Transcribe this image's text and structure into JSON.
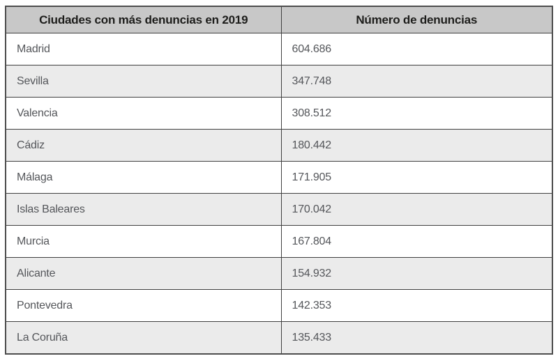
{
  "chart_data": {
    "type": "table",
    "columns": [
      "Ciudades con más denuncias en 2019",
      "Número de denuncias"
    ],
    "rows": [
      [
        "Madrid",
        "604.686"
      ],
      [
        "Sevilla",
        "347.748"
      ],
      [
        "Valencia",
        "308.512"
      ],
      [
        "Cádiz",
        "180.442"
      ],
      [
        "Málaga",
        "171.905"
      ],
      [
        "Islas Baleares",
        "170.042"
      ],
      [
        "Murcia",
        "167.804"
      ],
      [
        "Alicante",
        "154.932"
      ],
      [
        "Pontevedra",
        "142.353"
      ],
      [
        "La Coruña",
        "135.433"
      ]
    ],
    "layout": {
      "legend": "off",
      "grid": "table-borders",
      "striped_rows": true
    }
  },
  "colors": {
    "header_bg": "#c8c8c8",
    "row_bg": "#ffffff",
    "row_alt_bg": "#ebebeb",
    "border": "#3f3f3f",
    "outer_border": "#4d4d4d",
    "header_text": "#1d1d1b",
    "body_text": "#54565a"
  }
}
